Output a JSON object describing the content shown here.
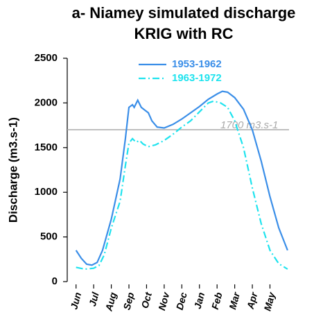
{
  "chart_data": {
    "type": "line",
    "title": [
      "a- Niamey simulated discharge",
      "KRIG with RC"
    ],
    "y_label": "Discharge (m3.s-1)",
    "xlim": [
      -0.5,
      12.2
    ],
    "xticks": [
      {
        "value": 0,
        "label": "Jun"
      },
      {
        "value": 1,
        "label": "Jul"
      },
      {
        "value": 2,
        "label": "Aug"
      },
      {
        "value": 3,
        "label": "Sep"
      },
      {
        "value": 4,
        "label": "Oct"
      },
      {
        "value": 5,
        "label": "Nov"
      },
      {
        "value": 6,
        "label": "Dec"
      },
      {
        "value": 7,
        "label": "Jan"
      },
      {
        "value": 8,
        "label": "Feb"
      },
      {
        "value": 9,
        "label": "Mar"
      },
      {
        "value": 10,
        "label": "Apr"
      },
      {
        "value": 11,
        "label": "May"
      }
    ],
    "ylim": [
      0,
      2500
    ],
    "yticks": [
      0,
      500,
      1000,
      1500,
      2000,
      2500
    ],
    "legend": "top",
    "reference_line": {
      "value": 1700,
      "label": "1700 m3.s-1",
      "color": "#aaaaaa"
    },
    "series": [
      {
        "name": "1953-1962",
        "color": "#3a8ee8",
        "dash": "solid",
        "x": [
          0,
          0.3,
          0.6,
          0.9,
          1.2,
          1.5,
          2.0,
          2.5,
          2.8,
          3.0,
          3.2,
          3.3,
          3.5,
          3.7,
          3.9,
          4.1,
          4.3,
          4.6,
          5.0,
          5.5,
          6.0,
          6.5,
          7.0,
          7.5,
          8.0,
          8.3,
          8.6,
          9.0,
          9.5,
          10.0,
          10.5,
          11.0,
          11.5,
          12.0
        ],
        "values": [
          350,
          260,
          195,
          185,
          215,
          350,
          700,
          1150,
          1600,
          1950,
          1980,
          1950,
          2030,
          1950,
          1920,
          1890,
          1800,
          1730,
          1720,
          1760,
          1820,
          1890,
          1960,
          2040,
          2100,
          2130,
          2120,
          2060,
          1930,
          1700,
          1350,
          950,
          600,
          350
        ]
      },
      {
        "name": "1963-1972",
        "color": "#1ee3ee",
        "dash": "dashdot",
        "x": [
          0,
          0.5,
          1.0,
          1.3,
          1.6,
          2.0,
          2.5,
          2.8,
          3.0,
          3.2,
          3.4,
          3.6,
          3.8,
          4.1,
          4.5,
          5.0,
          5.5,
          6.0,
          6.5,
          7.0,
          7.5,
          7.8,
          8.2,
          8.6,
          9.0,
          9.5,
          10.0,
          10.5,
          11.0,
          11.5,
          12.0
        ],
        "values": [
          160,
          140,
          150,
          180,
          300,
          600,
          900,
          1300,
          1550,
          1600,
          1560,
          1580,
          1540,
          1510,
          1530,
          1580,
          1650,
          1730,
          1800,
          1900,
          2000,
          2020,
          2000,
          1950,
          1800,
          1500,
          1050,
          650,
          350,
          200,
          140
        ]
      }
    ]
  }
}
